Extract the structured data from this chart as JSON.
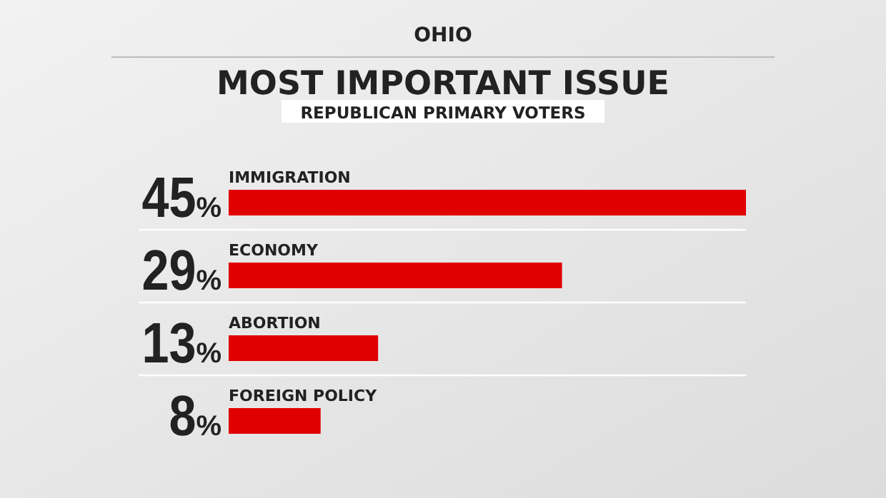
{
  "chart_data": {
    "type": "bar",
    "orientation": "horizontal",
    "title": "MOST IMPORTANT ISSUE",
    "subtitle": "REPUBLICAN PRIMARY VOTERS",
    "annotations": [
      "OHIO"
    ],
    "categories": [
      "IMMIGRATION",
      "ECONOMY",
      "ABORTION",
      "FOREIGN POLICY"
    ],
    "values": [
      45,
      29,
      13,
      8
    ],
    "value_labels": [
      "45%",
      "29%",
      "13%",
      "8%"
    ],
    "color": "#e00000",
    "grid": "y"
  }
}
